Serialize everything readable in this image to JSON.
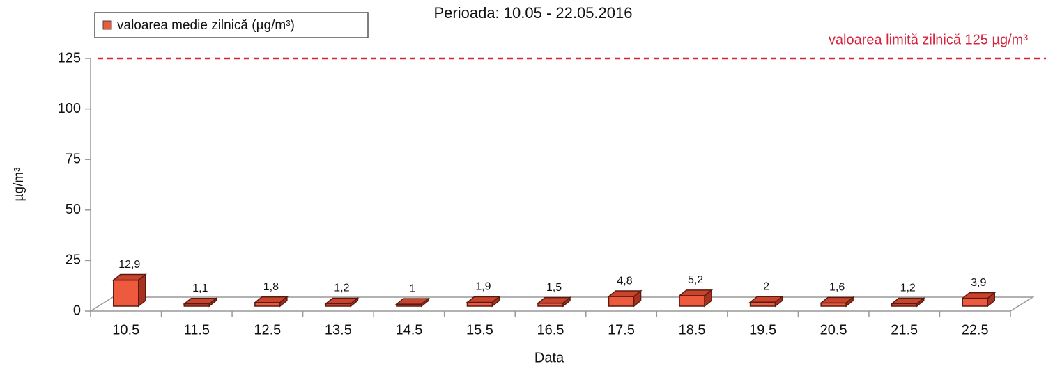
{
  "chart_data": {
    "type": "bar3d",
    "title": "Perioada: 10.05 - 22.05.2016",
    "x_label": "Data",
    "y_label": "µg/m³",
    "categories": [
      "10.5",
      "11.5",
      "12.5",
      "13.5",
      "14.5",
      "15.5",
      "16.5",
      "17.5",
      "18.5",
      "19.5",
      "20.5",
      "21.5",
      "22.5"
    ],
    "series": [
      {
        "name": "valoarea medie zilnică (µg/m³)",
        "color": "#ee5a3e",
        "values": [
          12.9,
          1.1,
          1.8,
          1.2,
          1,
          1.9,
          1.5,
          4.8,
          5.2,
          2,
          1.6,
          1.2,
          3.9
        ],
        "value_labels": [
          "12,9",
          "1,1",
          "1,8",
          "1,2",
          "1",
          "1,9",
          "1,5",
          "4,8",
          "5,2",
          "2",
          "1,6",
          "1,2",
          "3,9"
        ]
      }
    ],
    "threshold": {
      "value": 125,
      "label": "valoarea limită zilnică 125 µg/m³",
      "color": "#d6243d"
    },
    "ylim": [
      0,
      125
    ],
    "yticks": [
      0,
      25,
      50,
      75,
      100,
      125
    ],
    "legend": "top-left"
  }
}
